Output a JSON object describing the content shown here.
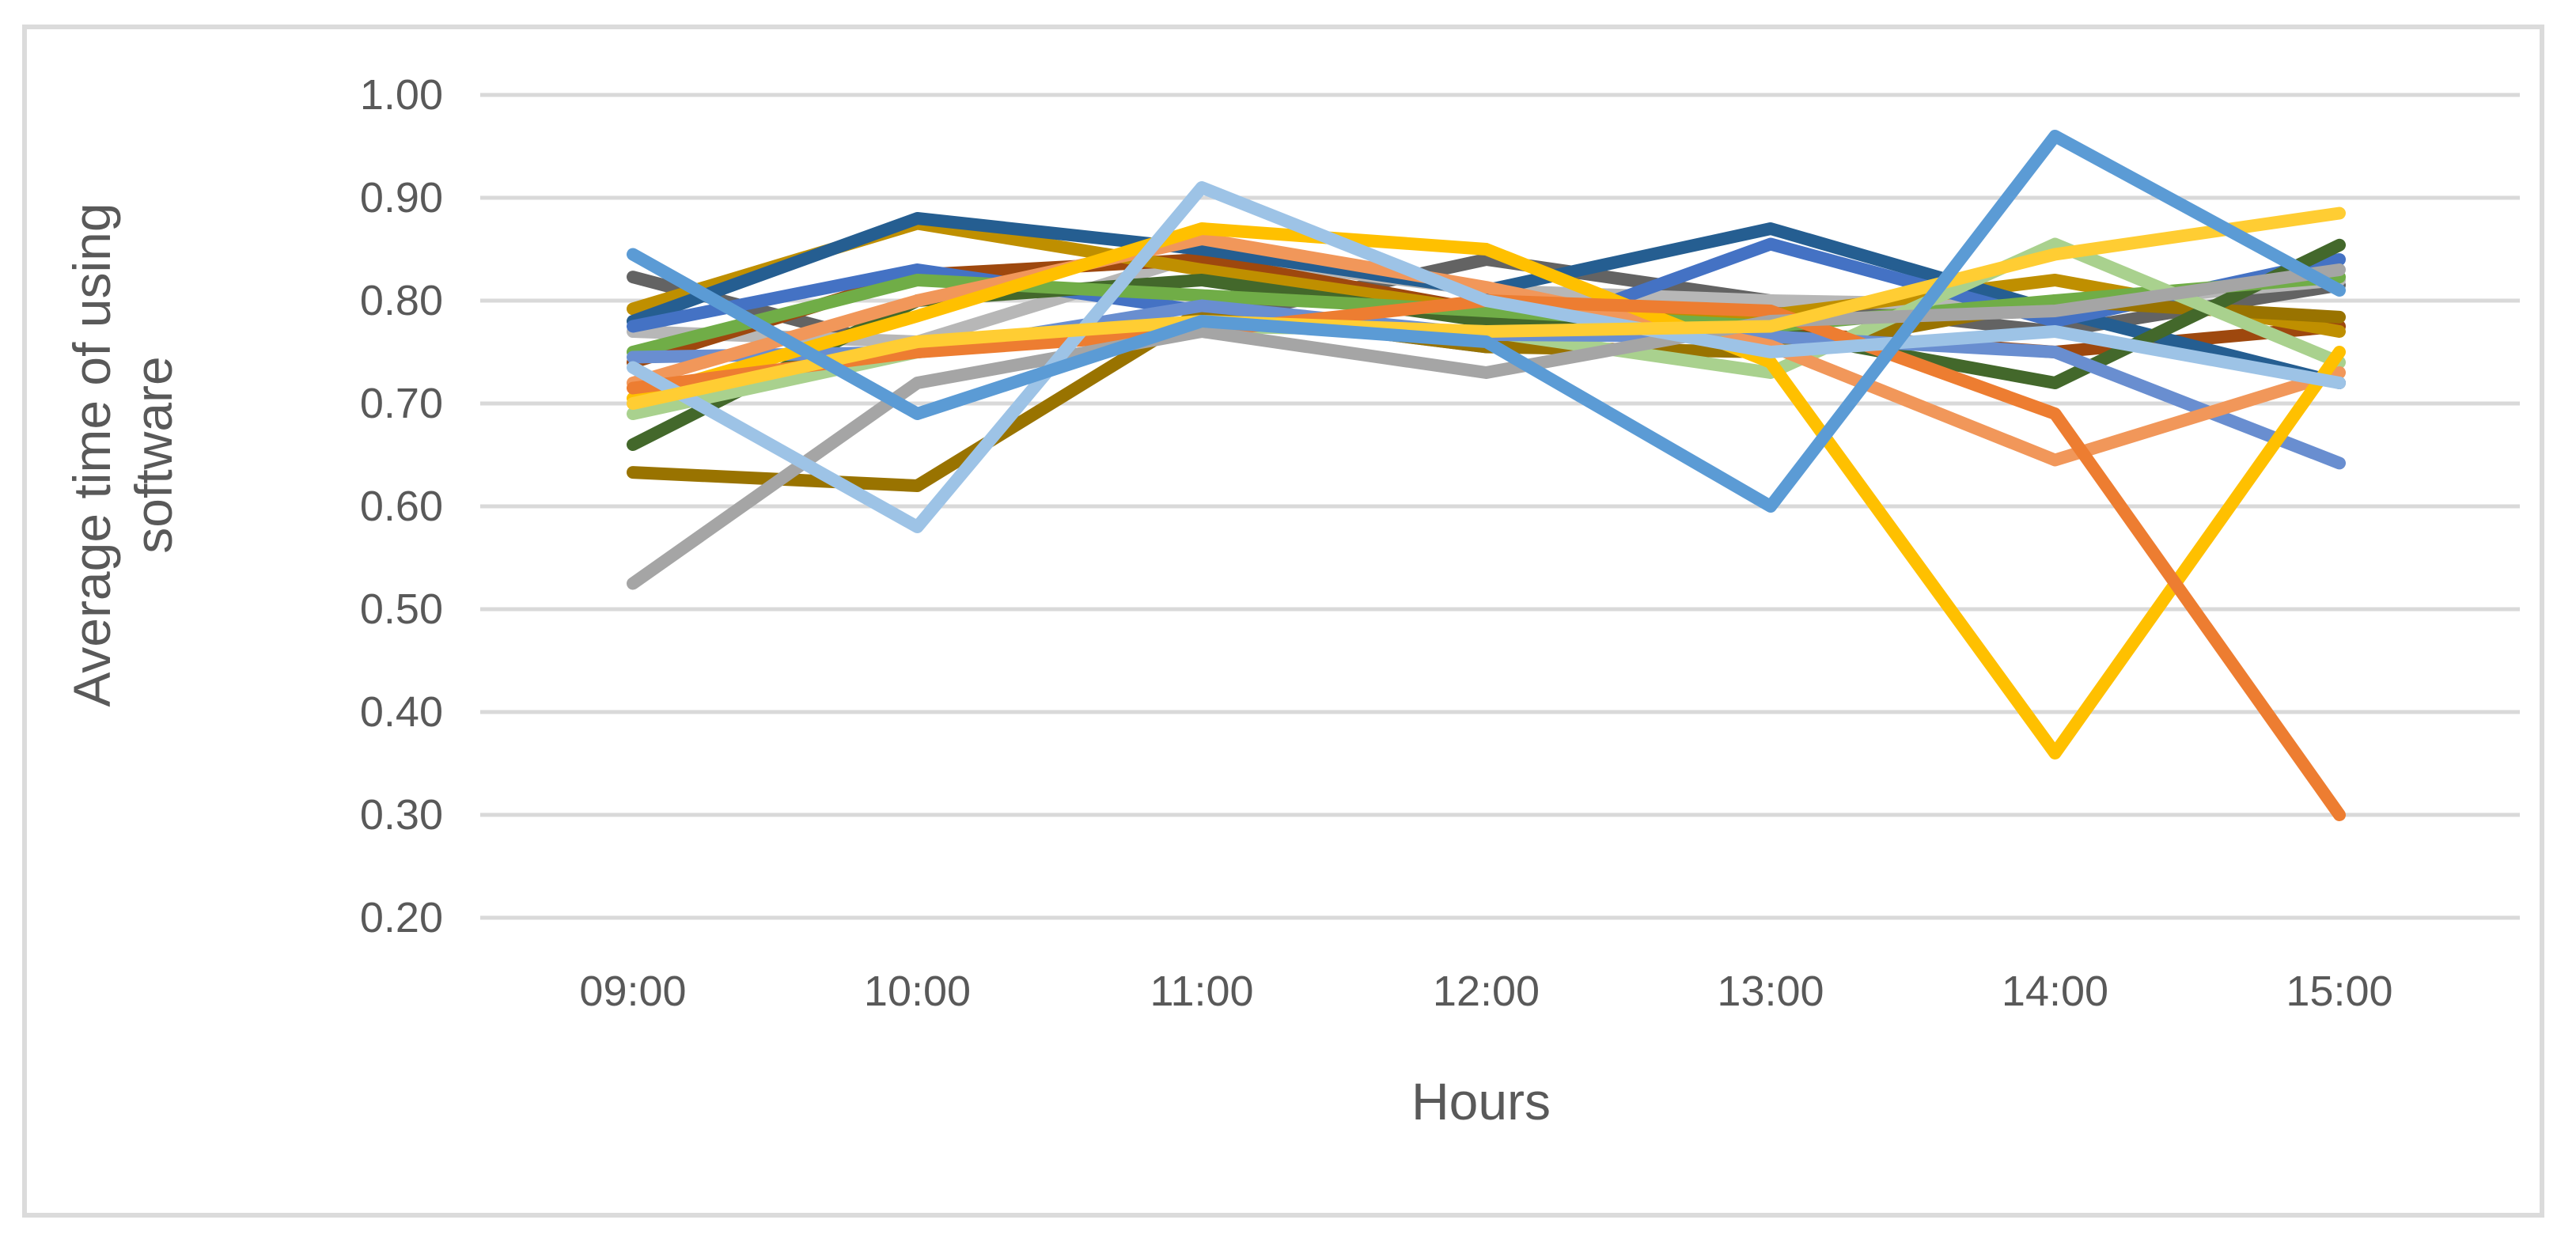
{
  "frame": {
    "background": "#FFFFFF",
    "border_color": "#DBDBDB"
  },
  "chart_data": {
    "type": "line",
    "title": "",
    "xlabel": "Hours",
    "ylabel": "Average time of using software",
    "ylabel_lines": [
      "Average time of using",
      "software"
    ],
    "categories": [
      "09:00",
      "10:00",
      "11:00",
      "12:00",
      "13:00",
      "14:00",
      "15:00"
    ],
    "ylim": [
      0.2,
      1.0
    ],
    "grid": "horizontal",
    "legend": "none",
    "axis_text_color": "#595959",
    "gridline_color": "#D9D9D9",
    "y_ticks": [
      {
        "label": "1.00",
        "value": 1.0
      },
      {
        "label": "0.90",
        "value": 0.9
      },
      {
        "label": "0.80",
        "value": 0.8
      },
      {
        "label": "0.70",
        "value": 0.7
      },
      {
        "label": "0.60",
        "value": 0.6
      },
      {
        "label": "0.50",
        "value": 0.5
      },
      {
        "label": "0.40",
        "value": 0.4
      },
      {
        "label": "0.30",
        "value": 0.3
      },
      {
        "label": "0.20",
        "value": 0.2
      }
    ],
    "series": [
      {
        "name": "series-dark-gray",
        "color": "#636363",
        "values": [
          0.823,
          0.75,
          0.78,
          0.84,
          0.8,
          0.77,
          0.815
        ]
      },
      {
        "name": "series-light-gray",
        "color": "#B7B7B7",
        "values": [
          0.77,
          0.76,
          0.845,
          0.81,
          0.8,
          0.795,
          0.82
        ]
      },
      {
        "name": "series-brown",
        "color": "#9E480E",
        "values": [
          0.74,
          0.825,
          0.84,
          0.79,
          0.77,
          0.75,
          0.775
        ]
      },
      {
        "name": "series-mustard",
        "color": "#BF8F00",
        "values": [
          0.792,
          0.875,
          0.83,
          0.79,
          0.786,
          0.82,
          0.77
        ]
      },
      {
        "name": "series-steel-blue",
        "color": "#255E91",
        "values": [
          0.78,
          0.88,
          0.85,
          0.81,
          0.87,
          0.79,
          0.72
        ]
      },
      {
        "name": "series-blue",
        "color": "#4472C4",
        "values": [
          0.775,
          0.83,
          0.79,
          0.755,
          0.855,
          0.78,
          0.84
        ]
      },
      {
        "name": "series-olive",
        "color": "#997300",
        "values": [
          0.633,
          0.62,
          0.79,
          0.755,
          0.75,
          0.8,
          0.784
        ]
      },
      {
        "name": "series-dark-green",
        "color": "#43682B",
        "values": [
          0.66,
          0.8,
          0.82,
          0.78,
          0.77,
          0.72,
          0.854
        ]
      },
      {
        "name": "series-green",
        "color": "#70AD47",
        "values": [
          0.75,
          0.82,
          0.805,
          0.79,
          0.775,
          0.8,
          0.823
        ]
      },
      {
        "name": "series-light-green",
        "color": "#A9D18E",
        "values": [
          0.69,
          0.75,
          0.775,
          0.77,
          0.73,
          0.855,
          0.74
        ]
      },
      {
        "name": "series-periwinkle",
        "color": "#698ED0",
        "values": [
          0.745,
          0.75,
          0.795,
          0.767,
          0.765,
          0.75,
          0.642
        ]
      },
      {
        "name": "series-salmon",
        "color": "#F1975A",
        "values": [
          0.72,
          0.8,
          0.86,
          0.813,
          0.756,
          0.645,
          0.73
        ]
      },
      {
        "name": "series-gold",
        "color": "#FFC000",
        "values": [
          0.705,
          0.785,
          0.87,
          0.85,
          0.74,
          0.36,
          0.75
        ]
      },
      {
        "name": "series-orange",
        "color": "#ED7D31",
        "values": [
          0.715,
          0.75,
          0.77,
          0.8,
          0.79,
          0.69,
          0.3
        ]
      },
      {
        "name": "series-gray",
        "color": "#A5A5A5",
        "values": [
          0.525,
          0.72,
          0.77,
          0.73,
          0.78,
          0.79,
          0.83
        ]
      },
      {
        "name": "series-pale-blue",
        "color": "#9DC3E6",
        "values": [
          0.735,
          0.58,
          0.91,
          0.8,
          0.75,
          0.77,
          0.72
        ]
      },
      {
        "name": "series-light-gold",
        "color": "#FFCD33",
        "values": [
          0.7,
          0.76,
          0.78,
          0.77,
          0.775,
          0.845,
          0.885
        ]
      },
      {
        "name": "series-light-blue",
        "color": "#5B9BD5",
        "values": [
          0.845,
          0.69,
          0.78,
          0.76,
          0.6,
          0.96,
          0.81
        ]
      }
    ]
  }
}
